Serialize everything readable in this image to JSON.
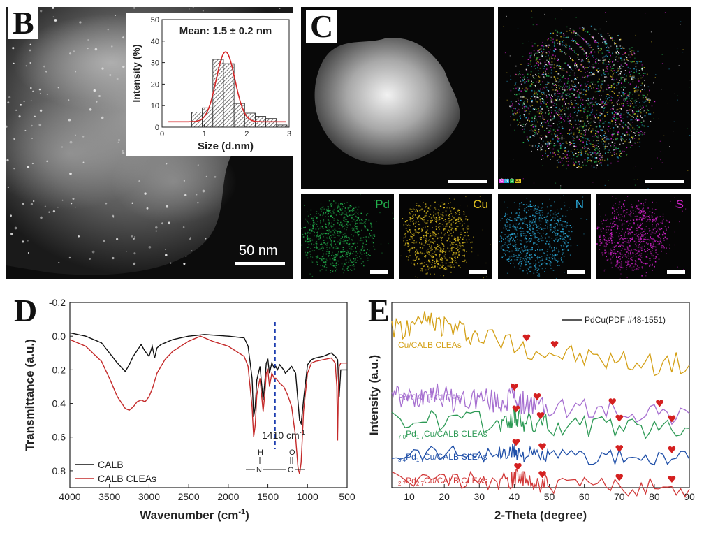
{
  "panel_b": {
    "letter": "B",
    "scale_label": "50 nm",
    "inset_chart": {
      "type": "bar",
      "title": "Mean: 1.5 ± 0.2 nm",
      "xlabel": "Size (d.nm)",
      "ylabel": "Intensity (%)",
      "xlim": [
        0,
        3
      ],
      "ylim": [
        0,
        50
      ],
      "x_ticks": [
        "0",
        "1",
        "2",
        "3"
      ],
      "y_ticks": [
        "0",
        "10",
        "20",
        "30",
        "40",
        "50"
      ],
      "bins": [
        {
          "x0": 0.7,
          "x1": 0.95,
          "value": 7
        },
        {
          "x0": 0.95,
          "x1": 1.2,
          "value": 9
        },
        {
          "x0": 1.2,
          "x1": 1.45,
          "value": 31.5
        },
        {
          "x0": 1.45,
          "x1": 1.7,
          "value": 29.5
        },
        {
          "x0": 1.7,
          "x1": 1.95,
          "value": 11
        },
        {
          "x0": 1.95,
          "x1": 2.2,
          "value": 6.5
        },
        {
          "x0": 2.2,
          "x1": 2.45,
          "value": 5
        },
        {
          "x0": 2.45,
          "x1": 2.7,
          "value": 4
        },
        {
          "x0": 2.7,
          "x1": 2.95,
          "value": 1
        }
      ],
      "fit": {
        "mean": 1.5,
        "sigma": 0.22,
        "peak": 35,
        "baseline": 2.5,
        "color": "#d62728"
      }
    }
  },
  "panel_c": {
    "letter": "C",
    "maps": [
      {
        "label": "Pd",
        "color": "#22b14c"
      },
      {
        "label": "Cu",
        "color": "#e0c020"
      },
      {
        "label": "N",
        "color": "#2aa8d8"
      },
      {
        "label": "S",
        "color": "#d020c8"
      }
    ],
    "overlay_legend": [
      "C",
      "N",
      "S",
      "Cu"
    ]
  },
  "panel_d": {
    "letter": "D",
    "annotation": "1410 cm",
    "annotation_sup": "-1",
    "structure": {
      "h": "H",
      "o": "O",
      "n": "N",
      "c": "C"
    },
    "chart_data": {
      "type": "line",
      "xlabel": "Wavenumber (cm",
      "xlabel_sup": "-1",
      "xlabel_end": ")",
      "ylabel": "Transmittance (a.u.)",
      "xlim": [
        4000,
        500
      ],
      "ylim": [
        -0.2,
        0.9
      ],
      "x_ticks": [
        "4000",
        "3500",
        "3000",
        "2500",
        "2000",
        "1500",
        "1000",
        "500"
      ],
      "y_ticks": [
        "-0.2",
        "0.0",
        "0.2",
        "0.4",
        "0.6",
        "0.8"
      ],
      "marker_x": 1410,
      "series": [
        {
          "name": "CALB",
          "color": "#111111",
          "x": [
            4000,
            3800,
            3600,
            3500,
            3400,
            3300,
            3250,
            3200,
            3100,
            3050,
            3000,
            2960,
            2930,
            2900,
            2850,
            2800,
            2700,
            2500,
            2300,
            2000,
            1800,
            1750,
            1700,
            1680,
            1660,
            1640,
            1600,
            1560,
            1540,
            1520,
            1500,
            1480,
            1450,
            1420,
            1400,
            1380,
            1350,
            1300,
            1280,
            1240,
            1200,
            1150,
            1100,
            1080,
            1050,
            1000,
            950,
            900,
            800,
            700,
            650,
            620,
            600,
            580,
            550,
            500
          ],
          "y": [
            -0.02,
            0.0,
            0.04,
            0.1,
            0.16,
            0.21,
            0.17,
            0.12,
            0.05,
            0.09,
            0.12,
            0.06,
            0.13,
            0.07,
            0.05,
            0.04,
            0.02,
            0.0,
            -0.01,
            0.0,
            0.01,
            0.06,
            0.25,
            0.48,
            0.42,
            0.26,
            0.18,
            0.38,
            0.28,
            0.16,
            0.14,
            0.22,
            0.16,
            0.19,
            0.18,
            0.2,
            0.17,
            0.2,
            0.22,
            0.2,
            0.18,
            0.22,
            0.5,
            0.52,
            0.38,
            0.17,
            0.14,
            0.13,
            0.12,
            0.1,
            0.12,
            0.14,
            0.36,
            0.2,
            0.2,
            0.2
          ]
        },
        {
          "name": "CALB CLEAs",
          "color": "#c42a2a",
          "x": [
            4000,
            3800,
            3600,
            3500,
            3400,
            3300,
            3250,
            3200,
            3150,
            3100,
            3050,
            3000,
            2950,
            2900,
            2800,
            2700,
            2500,
            2350,
            2200,
            2000,
            1800,
            1750,
            1700,
            1680,
            1660,
            1640,
            1600,
            1560,
            1540,
            1520,
            1500,
            1480,
            1450,
            1420,
            1400,
            1350,
            1300,
            1250,
            1200,
            1150,
            1120,
            1100,
            1080,
            1050,
            1000,
            950,
            900,
            800,
            700,
            650,
            630,
            620,
            610,
            600,
            580,
            550,
            500
          ],
          "y": [
            0.02,
            0.06,
            0.15,
            0.25,
            0.36,
            0.43,
            0.44,
            0.42,
            0.39,
            0.38,
            0.39,
            0.36,
            0.3,
            0.22,
            0.14,
            0.09,
            0.03,
            0.0,
            0.03,
            0.06,
            0.12,
            0.18,
            0.42,
            0.6,
            0.53,
            0.35,
            0.25,
            0.45,
            0.35,
            0.22,
            0.2,
            0.3,
            0.22,
            0.25,
            0.25,
            0.28,
            0.3,
            0.35,
            0.42,
            0.6,
            0.78,
            0.82,
            0.75,
            0.45,
            0.22,
            0.16,
            0.15,
            0.14,
            0.13,
            0.16,
            0.3,
            0.62,
            0.3,
            0.18,
            0.16,
            0.16,
            0.16
          ]
        }
      ]
    }
  },
  "panel_e": {
    "letter": "E",
    "chart_data": {
      "type": "line",
      "xlabel": "2-Theta (degree)",
      "ylabel": "Intensity (a.u.)",
      "xlim": [
        5,
        90
      ],
      "x_ticks": [
        "10",
        "20",
        "30",
        "40",
        "50",
        "60",
        "70",
        "80",
        "90"
      ],
      "legend": "PdCu(PDF #48-1551)",
      "series": [
        {
          "name": "Cu/CALB CLEAs",
          "color": "#d4a017",
          "x": [
            5,
            10,
            14,
            17,
            20,
            25,
            30,
            40,
            50,
            60,
            70,
            80,
            90
          ],
          "y": [
            0.0,
            0.1,
            0.7,
            0.8,
            0.5,
            -0.1,
            -0.5,
            -1.2,
            -2.0,
            -2.5,
            -2.8,
            -3.0,
            -3.1
          ],
          "peaks": [
            43.5,
            51.5
          ]
        },
        {
          "name": "Pd/CALB CLEAs",
          "color": "#a66fd0",
          "x": [
            5,
            8,
            12,
            15,
            18,
            22,
            26,
            30,
            34,
            37,
            39.5,
            41,
            43,
            46,
            50,
            60,
            70,
            80,
            90
          ],
          "y": [
            0.1,
            -0.6,
            -0.5,
            0.3,
            0.0,
            -0.7,
            -0.6,
            -0.4,
            -0.8,
            -0.8,
            -0.1,
            -0.6,
            -1.0,
            -1.1,
            -1.3,
            -1.5,
            -1.6,
            -1.7,
            -1.8
          ],
          "peaks": [
            40,
            46.5,
            68,
            81.5
          ]
        },
        {
          "name_sub": "7.0",
          "name_mid": "Pd",
          "name_sub2": "1.7",
          "name_end": "Cu/CALB CLEAs",
          "color": "#2e9a56",
          "x": [
            5,
            15,
            25,
            35,
            38,
            40,
            41,
            43,
            46,
            50,
            60,
            70,
            80,
            90
          ],
          "y": [
            0.3,
            0.5,
            0.4,
            0.2,
            0.2,
            0.9,
            0.6,
            0.2,
            0.1,
            0.0,
            -0.1,
            -0.2,
            -0.2,
            -0.3
          ],
          "peaks": [
            40.5,
            47.5,
            70,
            85
          ]
        },
        {
          "name_sub": "3.4",
          "name_mid": "Pd",
          "name_sub2": "1.7",
          "name_end": "Cu/CALB CLEAs",
          "color": "#1f4fa8",
          "x": [
            5,
            15,
            25,
            35,
            38,
            40,
            41,
            43,
            46,
            50,
            60,
            70,
            80,
            90
          ],
          "y": [
            0.4,
            0.6,
            0.5,
            0.3,
            0.3,
            0.7,
            0.5,
            0.2,
            0.1,
            0.0,
            -0.1,
            -0.2,
            -0.3,
            -0.4
          ],
          "peaks": [
            40.5,
            48,
            70,
            85
          ]
        },
        {
          "name_sub": "2.7",
          "name_mid": "Pd",
          "name_sub2": "2.7",
          "name_end": "Cu/CALB CLEAs",
          "color": "#d23a3a",
          "x": [
            5,
            15,
            25,
            35,
            39,
            41,
            42,
            44,
            47,
            50,
            60,
            70,
            80,
            90
          ],
          "y": [
            0.4,
            0.6,
            0.5,
            0.3,
            0.4,
            1.0,
            0.5,
            0.2,
            0.1,
            0.0,
            -0.2,
            -0.3,
            -0.4,
            -0.6
          ],
          "peaks": [
            41,
            48,
            70,
            85
          ]
        }
      ]
    }
  }
}
